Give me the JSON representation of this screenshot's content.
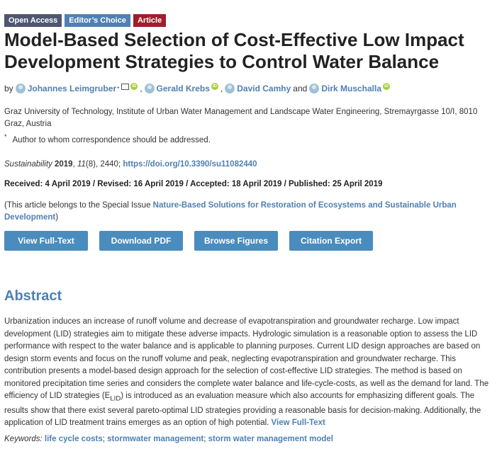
{
  "badges": {
    "open_access": "Open Access",
    "editors_choice": "Editor’s Choice",
    "article": "Article"
  },
  "title": "Model-Based Selection of Cost-Effective Low Impact Development Strategies to Control Water Balance",
  "authors": {
    "by": "by",
    "names": [
      "Johannes Leimgruber",
      "Gerald Krebs",
      "David Camhy",
      "Dirk Muschalla"
    ],
    "corresponding_mark": "*",
    "and": "and"
  },
  "affiliation": "Graz University of Technology, Institute of Urban Water Management and Landscape Water Engineering, Stremayrgasse 10/I, 8010 Graz, Austria",
  "correspondence": {
    "star": "*",
    "text": "Author to whom correspondence should be addressed."
  },
  "citation": {
    "journal": "Sustainability",
    "year": "2019",
    "volume": "11",
    "issue_pages": "(8), 2440;",
    "doi": "https://doi.org/10.3390/su11082440"
  },
  "dates": "Received: 4 April 2019 / Revised: 16 April 2019 / Accepted: 18 April 2019 / Published: 25 April 2019",
  "special_issue": {
    "prefix": "(This article belongs to the Special Issue ",
    "link": "Nature-Based Solutions for Restoration of Ecosystems and Sustainable Urban Development",
    "suffix": ")"
  },
  "buttons": {
    "full_text": "View Full-Text",
    "pdf": "Download PDF",
    "figures": "Browse Figures",
    "citation": "Citation Export"
  },
  "abstract": {
    "heading": "Abstract",
    "text_1": "Urbanization induces an increase of runoff volume and decrease of evapotranspiration and groundwater recharge. Low impact development (LID) strategies aim to mitigate these adverse impacts. Hydrologic simulation is a reasonable option to assess the LID performance with respect to the water balance and is applicable to planning purposes. Current LID design approaches are based on design storm events and focus on the runoff volume and peak, neglecting evapotranspiration and groundwater recharge. This contribution presents a model-based design approach for the selection of cost-effective LID strategies. The method is based on monitored precipitation time series and considers the complete water balance and life-cycle-costs, as well as the demand for land. The efficiency of LID strategies (E",
    "subscript": "LID",
    "text_2": ") is introduced as an evaluation measure which also accounts for emphasizing different goals. The results show that there exist several pareto-optimal LID strategies providing a reasonable basis for decision-making. Additionally, the application of LID treatment trains emerges as an option of high potential.",
    "view_full_text": "View Full-Text"
  },
  "keywords": {
    "label": "Keywords:",
    "items": [
      "life cycle costs",
      "stormwater management",
      "storm water management model"
    ]
  },
  "colors": {
    "link": "#4f80b3",
    "button": "#4a8cbd",
    "open_access": "#4f5671",
    "editors_choice": "#4f80b3",
    "article": "#a01d2b",
    "orcid": "#a6ce39"
  }
}
